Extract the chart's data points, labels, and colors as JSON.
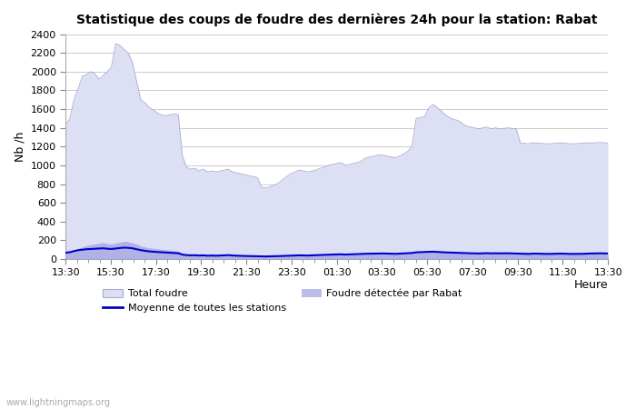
{
  "title": "Statistique des coups de foudre des dernières 24h pour la station: Rabat",
  "xlabel": "Heure",
  "ylabel": "Nb /h",
  "watermark": "www.lightningmaps.org",
  "x_labels": [
    "13:30",
    "15:30",
    "17:30",
    "19:30",
    "21:30",
    "23:30",
    "01:30",
    "03:30",
    "05:30",
    "07:30",
    "09:30",
    "11:30",
    "13:30"
  ],
  "ylim": [
    0,
    2400
  ],
  "yticks": [
    0,
    200,
    400,
    600,
    800,
    1000,
    1200,
    1400,
    1600,
    1800,
    2000,
    2200,
    2400
  ],
  "bg_color": "#ffffff",
  "grid_color": "#cccccc",
  "total_foudre_color": "#dde0f5",
  "rabat_color": "#9999dd",
  "moyenne_color": "#0000cc",
  "total_foudre": [
    1430,
    1500,
    1700,
    1820,
    1950,
    1970,
    2000,
    1980,
    1920,
    1960,
    2000,
    2050,
    2300,
    2280,
    2240,
    2200,
    2100,
    1900,
    1700,
    1670,
    1620,
    1590,
    1560,
    1540,
    1530,
    1540,
    1550,
    1540,
    1100,
    980,
    960,
    970,
    940,
    960,
    930,
    940,
    930,
    940,
    950,
    960,
    930,
    920,
    910,
    900,
    890,
    880,
    870,
    760,
    760,
    770,
    790,
    810,
    850,
    880,
    910,
    930,
    950,
    940,
    930,
    940,
    950,
    970,
    980,
    1000,
    1010,
    1020,
    1030,
    1000,
    1010,
    1020,
    1030,
    1050,
    1080,
    1090,
    1100,
    1110,
    1110,
    1100,
    1090,
    1080,
    1100,
    1120,
    1150,
    1200,
    1500,
    1510,
    1520,
    1610,
    1650,
    1620,
    1580,
    1540,
    1510,
    1490,
    1480,
    1450,
    1420,
    1410,
    1400,
    1390,
    1400,
    1410,
    1390,
    1400,
    1390,
    1395,
    1400,
    1395,
    1390,
    1240,
    1235,
    1230,
    1240,
    1240,
    1235,
    1230,
    1230,
    1235,
    1240,
    1240,
    1235,
    1230,
    1230,
    1235,
    1235,
    1240,
    1240,
    1240,
    1245,
    1240,
    1240
  ],
  "rabat_detected": [
    65,
    70,
    90,
    110,
    130,
    145,
    155,
    160,
    170,
    175,
    165,
    160,
    170,
    180,
    190,
    185,
    175,
    160,
    140,
    130,
    120,
    115,
    110,
    105,
    100,
    95,
    90,
    85,
    55,
    45,
    42,
    43,
    40,
    42,
    38,
    40,
    38,
    40,
    42,
    44,
    40,
    38,
    36,
    35,
    34,
    33,
    32,
    30,
    30,
    30,
    32,
    33,
    35,
    37,
    39,
    40,
    42,
    41,
    40,
    42,
    44,
    46,
    47,
    48,
    50,
    52,
    53,
    50,
    52,
    53,
    55,
    57,
    59,
    60,
    62,
    63,
    62,
    61,
    60,
    58,
    60,
    62,
    64,
    68,
    78,
    80,
    82,
    85,
    86,
    84,
    80,
    76,
    75,
    73,
    72,
    70,
    68,
    67,
    66,
    65,
    67,
    68,
    66,
    67,
    66,
    67,
    67,
    66,
    65,
    60,
    58,
    57,
    60,
    60,
    58,
    57,
    57,
    58,
    60,
    60,
    58,
    57,
    57,
    58,
    58,
    60,
    62,
    62,
    65,
    62,
    62
  ],
  "moyenne": [
    68,
    73,
    85,
    95,
    100,
    105,
    108,
    110,
    112,
    115,
    110,
    108,
    112,
    118,
    122,
    120,
    115,
    105,
    95,
    88,
    82,
    78,
    75,
    72,
    70,
    68,
    65,
    62,
    48,
    42,
    40,
    41,
    38,
    40,
    36,
    38,
    36,
    38,
    40,
    42,
    38,
    36,
    34,
    33,
    32,
    31,
    30,
    28,
    28,
    29,
    30,
    31,
    33,
    35,
    37,
    38,
    40,
    39,
    38,
    40,
    42,
    44,
    45,
    46,
    48,
    50,
    51,
    48,
    50,
    51,
    53,
    55,
    57,
    58,
    60,
    61,
    60,
    59,
    58,
    56,
    58,
    60,
    62,
    65,
    72,
    74,
    76,
    78,
    79,
    77,
    74,
    71,
    70,
    68,
    67,
    65,
    63,
    62,
    61,
    60,
    62,
    63,
    61,
    62,
    61,
    62,
    62,
    61,
    60,
    58,
    56,
    55,
    58,
    58,
    56,
    55,
    55,
    56,
    58,
    58,
    56,
    55,
    55,
    56,
    56,
    58,
    60,
    60,
    62,
    60,
    60
  ]
}
